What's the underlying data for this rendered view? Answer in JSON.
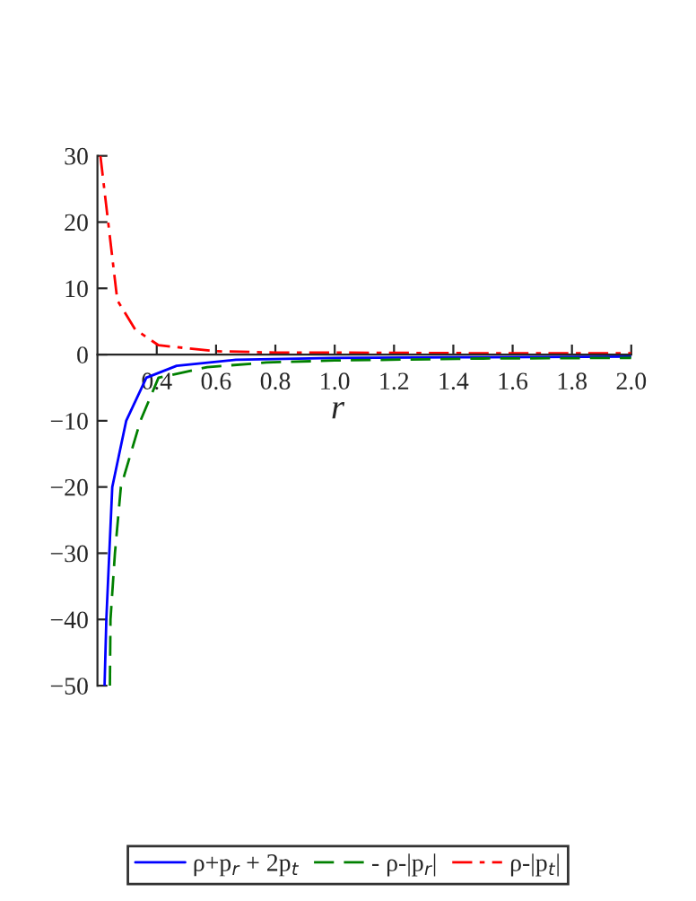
{
  "chart_data": {
    "type": "line",
    "xlabel": "r",
    "xlim": [
      0.2,
      2.0
    ],
    "xticks": [
      0.4,
      0.6,
      0.8,
      {
        "value": 1,
        "label": "1.0"
      },
      1.2,
      1.4,
      1.6,
      1.8,
      {
        "value": 2,
        "label": "2.0"
      }
    ],
    "ylim": [
      -50,
      30
    ],
    "yticks": [
      -50,
      -40,
      -30,
      -20,
      -10,
      0,
      10,
      20,
      30
    ],
    "grid": false,
    "legend": "bottom",
    "series": [
      {
        "name": "ρ+p$_{r}$ + 2p$_{t}$",
        "color": "#0000ff",
        "line_style": "solid",
        "x": [
          0.224,
          0.23,
          0.25,
          0.297,
          0.365,
          0.467,
          0.667,
          1.0,
          1.5,
          2.0
        ],
        "values": [
          -50,
          -40,
          -20,
          -10,
          -3.5,
          -1.7,
          -0.8,
          -0.5,
          -0.4,
          -0.3
        ]
      },
      {
        "name": "- ρ-|p$_{r}$|",
        "color": "#008000",
        "line_style": "dashed",
        "x": [
          0.242,
          0.244,
          0.259,
          0.279,
          0.345,
          0.406,
          0.57,
          0.77,
          1.0,
          1.5,
          2.0
        ],
        "values": [
          -50,
          -40,
          -30,
          -20,
          -10,
          -3.5,
          -1.9,
          -1.2,
          -0.9,
          -0.6,
          -0.5
        ]
      },
      {
        "name": "ρ-|p$_{t}$|",
        "color": "#ff0000",
        "line_style": "dashdot",
        "x": [
          0.21,
          0.267,
          0.327,
          0.406,
          0.6,
          0.8,
          1.0,
          1.5,
          2.0
        ],
        "values": [
          30,
          8.2,
          3.8,
          1.4,
          0.5,
          0.3,
          0.3,
          0.2,
          0.2
        ]
      }
    ]
  }
}
